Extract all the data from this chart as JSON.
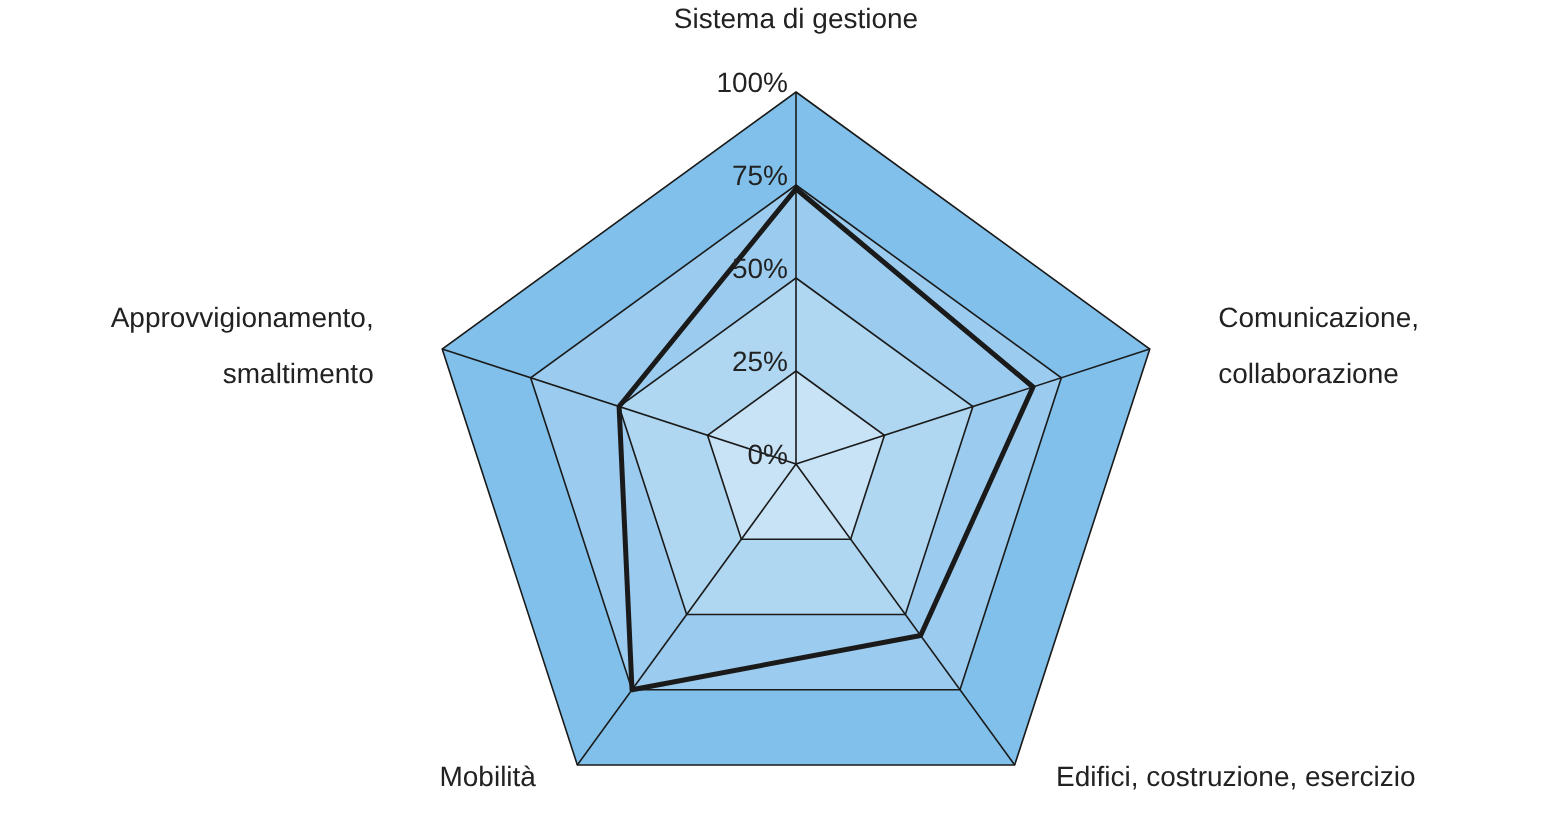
{
  "chart_data": {
    "type": "radar",
    "categories": [
      "Sistema di gestione",
      "Comunicazione, collaborazione",
      "Edifici, costruzione, esercizio",
      "Mobilità",
      "Approvvigionamento, smaltimento"
    ],
    "series": [
      {
        "color": "#1a1a1a",
        "values": [
          74,
          67,
          57,
          75,
          50
        ]
      }
    ],
    "ylim": [
      0,
      100
    ],
    "yticks": [
      {
        "value": 0,
        "label": "0%"
      },
      {
        "value": 25,
        "label": "25%"
      },
      {
        "value": 50,
        "label": "50%"
      },
      {
        "value": 75,
        "label": "75%"
      },
      {
        "value": 100,
        "label": "100%"
      }
    ],
    "grid": true,
    "legend": false,
    "marker": "none"
  }
}
